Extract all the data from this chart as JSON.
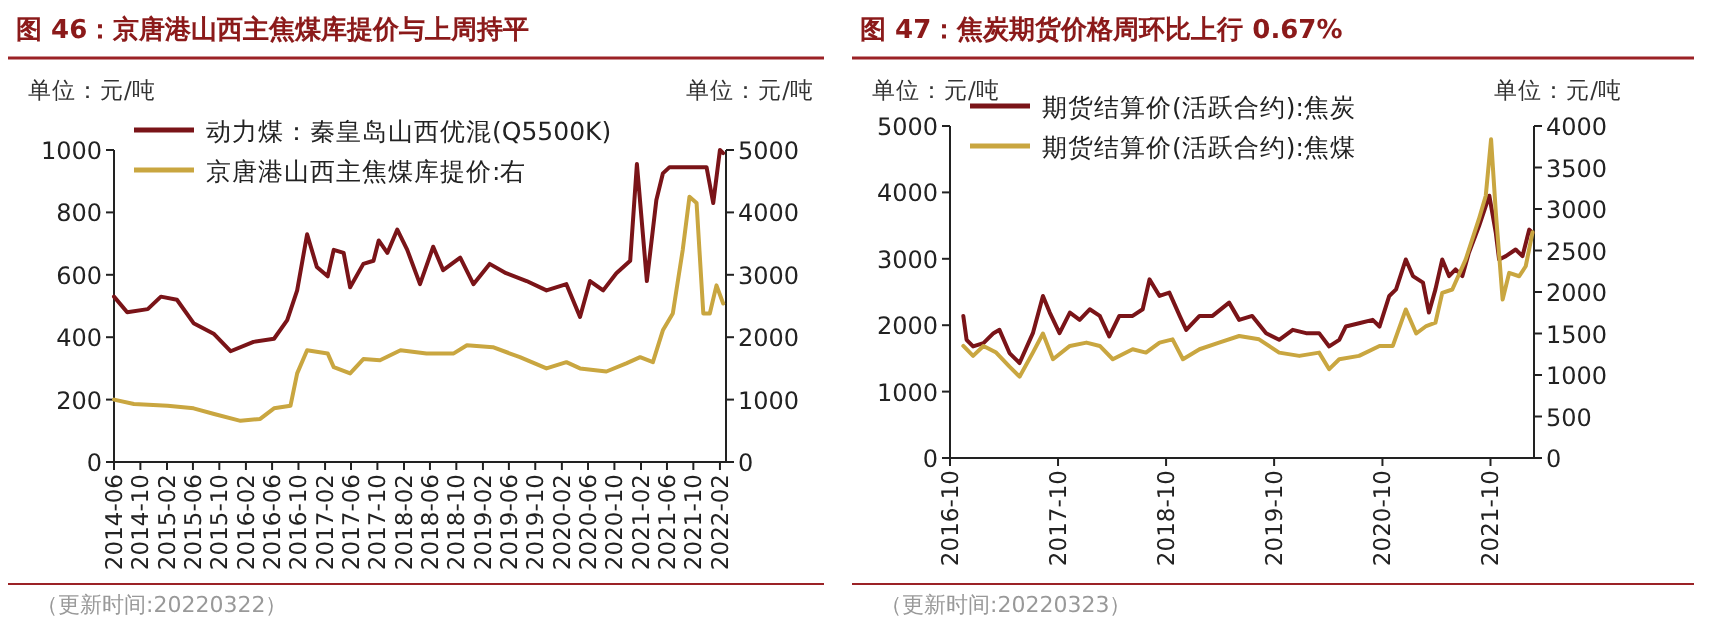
{
  "chart_data": [
    {
      "type": "line",
      "title": "图 46：京唐港山西主焦煤库提价与上周持平",
      "ylabel": "单位：元/吨",
      "y2label": "单位：元/吨",
      "legend": "top left",
      "marker": "none",
      "line_style": "solid",
      "grid": false,
      "xlim": [
        "2014-06",
        "2022-03"
      ],
      "xticks": [
        "2014-06",
        "2014-10",
        "2015-02",
        "2015-06",
        "2015-10",
        "2016-02",
        "2016-06",
        "2016-10",
        "2017-02",
        "2017-06",
        "2017-10",
        "2018-02",
        "2018-06",
        "2018-10",
        "2019-02",
        "2019-06",
        "2019-10",
        "2020-02",
        "2020-06",
        "2020-10",
        "2021-02",
        "2021-06",
        "2021-10",
        "2022-02"
      ],
      "ylim": [
        0,
        1000
      ],
      "yticks": [
        0,
        200,
        400,
        600,
        800,
        1000
      ],
      "y2lim": [
        0,
        5000
      ],
      "y2ticks": [
        0,
        1000,
        2000,
        3000,
        4000,
        5000
      ],
      "annotations": [
        "（更新时间:20220322）"
      ],
      "series": [
        {
          "name": "动力煤：秦皇岛山西优混(Q5500K)",
          "color": "#7a1418",
          "x": [
            "2014-06-01",
            "2014-08-01",
            "2014-11-04",
            "2015-01-04",
            "2015-03-19",
            "2015-06-04",
            "2015-09-07",
            "2015-11-22",
            "2016-03-07",
            "2016-06-10",
            "2016-08-10",
            "2016-09-25",
            "2016-11-10",
            "2016-12-25",
            "2017-02-13",
            "2017-03-13",
            "2017-04-28",
            "2017-05-28",
            "2017-07-28",
            "2017-09-13",
            "2017-10-07",
            "2017-11-16",
            "2018-01-01",
            "2018-02-16",
            "2018-04-16",
            "2018-06-16",
            "2018-08-01",
            "2018-10-19",
            "2018-12-19",
            "2019-03-04",
            "2019-05-19",
            "2019-08-22",
            "2019-11-22",
            "2020-02-22",
            "2020-04-25",
            "2020-06-10",
            "2020-08-10",
            "2020-10-10",
            "2020-12-13",
            "2021-01-13",
            "2021-02-28",
            "2021-04-13",
            "2021-05-13",
            "2021-06-13",
            "2021-12-01",
            "2022-01-01",
            "2022-02-01",
            "2022-02-16"
          ],
          "values": [
            530,
            480,
            490,
            530,
            520,
            445,
            410,
            355,
            385,
            395,
            455,
            550,
            730,
            625,
            595,
            680,
            670,
            560,
            635,
            645,
            710,
            670,
            745,
            680,
            570,
            690,
            615,
            655,
            570,
            635,
            605,
            580,
            550,
            570,
            465,
            580,
            550,
            605,
            645,
            955,
            580,
            840,
            925,
            945,
            945,
            830,
            1000,
            990
          ]
        },
        {
          "name": "京唐港山西主焦煤库提价:右",
          "color": "#c9a640",
          "axis": "y2",
          "x": [
            "2014-06-01",
            "2014-09-01",
            "2015-02-04",
            "2015-06-04",
            "2015-09-07",
            "2016-01-07",
            "2016-04-07",
            "2016-06-10",
            "2016-08-25",
            "2016-09-25",
            "2016-11-10",
            "2017-02-13",
            "2017-03-13",
            "2017-05-28",
            "2017-07-28",
            "2017-10-13",
            "2018-01-16",
            "2018-05-16",
            "2018-09-19",
            "2018-11-19",
            "2019-03-19",
            "2019-07-22",
            "2019-11-22",
            "2020-02-22",
            "2020-04-25",
            "2020-08-25",
            "2020-11-25",
            "2021-01-28",
            "2021-03-28",
            "2021-05-13",
            "2021-06-28",
            "2021-08-13",
            "2021-09-13",
            "2021-10-16",
            "2021-11-16",
            "2021-12-16",
            "2022-01-16",
            "2022-02-16"
          ],
          "values": [
            1000,
            930,
            900,
            860,
            770,
            660,
            690,
            860,
            900,
            1420,
            1790,
            1740,
            1520,
            1420,
            1650,
            1630,
            1790,
            1740,
            1740,
            1870,
            1840,
            1680,
            1500,
            1600,
            1500,
            1450,
            1580,
            1680,
            1600,
            2110,
            2380,
            3400,
            4250,
            4150,
            2380,
            2380,
            2830,
            2540
          ]
        }
      ]
    },
    {
      "type": "line",
      "title": "图 47：焦炭期货价格周环比上行 0.67%",
      "ylabel": "单位：元/吨",
      "y2label": "单位：元/吨",
      "legend": "top left",
      "marker": "none",
      "line_style": "solid",
      "grid": false,
      "xlim": [
        "2016-10",
        "2022-02-25"
      ],
      "xticks": [
        "2016-10",
        "2017-10",
        "2018-10",
        "2019-10",
        "2020-10",
        "2021-10"
      ],
      "ylim": [
        0,
        5000
      ],
      "yticks": [
        0,
        1000,
        2000,
        3000,
        4000,
        5000
      ],
      "y2lim": [
        0,
        4000
      ],
      "y2ticks": [
        0,
        500,
        1000,
        1500,
        2000,
        2500,
        3000,
        3500,
        4000
      ],
      "annotations": [
        "（更新时间:20220323）"
      ],
      "series": [
        {
          "name": "期货结算价(活跃合约):焦炭",
          "color": "#7a1418",
          "x": [
            "2016-11-15",
            "2016-11-26",
            "2016-12-18",
            "2017-01-22",
            "2017-02-25",
            "2017-03-17",
            "2017-04-20",
            "2017-05-24",
            "2017-07-08",
            "2017-08-11",
            "2017-09-03",
            "2017-10-06",
            "2017-11-10",
            "2017-12-13",
            "2018-01-16",
            "2018-02-19",
            "2018-03-23",
            "2018-04-26",
            "2018-06-10",
            "2018-07-14",
            "2018-08-06",
            "2018-09-09",
            "2018-10-12",
            "2018-11-16",
            "2018-12-08",
            "2019-01-22",
            "2019-03-07",
            "2019-05-02",
            "2019-06-05",
            "2019-07-19",
            "2019-09-04",
            "2019-10-18",
            "2019-12-03",
            "2020-01-17",
            "2020-03-01",
            "2020-04-04",
            "2020-05-08",
            "2020-05-30",
            "2020-07-14",
            "2020-08-29",
            "2020-09-21",
            "2020-10-24",
            "2020-11-16",
            "2020-12-19",
            "2021-01-12",
            "2021-02-15",
            "2021-03-07",
            "2021-03-29",
            "2021-04-21",
            "2021-05-14",
            "2021-06-05",
            "2021-06-28",
            "2021-07-20",
            "2021-08-23",
            "2021-09-27",
            "2021-10-19",
            "2021-10-30",
            "2021-11-22",
            "2021-12-25",
            "2022-01-17",
            "2022-02-09",
            "2022-02-20"
          ],
          "values": [
            2140,
            1780,
            1680,
            1730,
            1880,
            1930,
            1580,
            1430,
            1880,
            2440,
            2190,
            1880,
            2190,
            2080,
            2240,
            2140,
            1830,
            2140,
            2140,
            2240,
            2690,
            2440,
            2490,
            2140,
            1930,
            2140,
            2140,
            2340,
            2080,
            2140,
            1880,
            1780,
            1930,
            1880,
            1880,
            1680,
            1780,
            1980,
            2030,
            2080,
            1980,
            2440,
            2540,
            2990,
            2740,
            2640,
            2190,
            2540,
            2990,
            2740,
            2840,
            2740,
            3090,
            3490,
            3950,
            3390,
            2990,
            3040,
            3140,
            3040,
            3440,
            3390
          ]
        },
        {
          "name": "期货结算价(活跃合约):焦煤",
          "color": "#c9a640",
          "axis": "y2",
          "x": [
            "2016-11-15",
            "2016-12-18",
            "2017-01-22",
            "2017-03-06",
            "2017-04-20",
            "2017-05-24",
            "2017-07-08",
            "2017-08-11",
            "2017-09-14",
            "2017-11-10",
            "2018-01-05",
            "2018-02-19",
            "2018-04-04",
            "2018-06-10",
            "2018-07-25",
            "2018-09-09",
            "2018-10-23",
            "2018-11-27",
            "2019-01-22",
            "2019-03-29",
            "2019-06-05",
            "2019-08-11",
            "2019-10-18",
            "2019-12-25",
            "2020-03-01",
            "2020-04-04",
            "2020-05-08",
            "2020-07-14",
            "2020-09-21",
            "2020-11-05",
            "2020-12-19",
            "2021-01-23",
            "2021-02-26",
            "2021-03-29",
            "2021-04-21",
            "2021-05-25",
            "2021-07-09",
            "2021-08-23",
            "2021-09-15",
            "2021-10-03",
            "2021-10-19",
            "2021-11-11",
            "2021-12-03",
            "2022-01-06",
            "2022-01-28",
            "2022-02-20"
          ],
          "values": [
            1350,
            1230,
            1350,
            1270,
            1100,
            980,
            1270,
            1500,
            1190,
            1350,
            1390,
            1350,
            1190,
            1310,
            1270,
            1390,
            1430,
            1190,
            1310,
            1390,
            1470,
            1430,
            1270,
            1230,
            1270,
            1070,
            1190,
            1230,
            1350,
            1350,
            1790,
            1500,
            1590,
            1630,
            1990,
            2030,
            2390,
            2880,
            3160,
            3840,
            2960,
            1910,
            2230,
            2190,
            2310,
            2720
          ]
        }
      ]
    }
  ]
}
